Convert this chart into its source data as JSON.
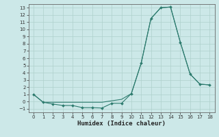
{
  "title": "",
  "xlabel": "Humidex (Indice chaleur)",
  "x": [
    0,
    1,
    2,
    3,
    4,
    5,
    6,
    7,
    8,
    9,
    10,
    11,
    12,
    13,
    14,
    15,
    16,
    17,
    18
  ],
  "y_main": [
    1.0,
    -0.1,
    -0.35,
    -0.55,
    -0.55,
    -0.85,
    -0.85,
    -0.9,
    -0.25,
    -0.25,
    1.1,
    5.3,
    11.5,
    13.0,
    13.1,
    8.2,
    3.8,
    2.4,
    2.3
  ],
  "y_upper": [
    1.0,
    -0.1,
    -0.1,
    -0.1,
    -0.1,
    -0.1,
    -0.1,
    -0.1,
    0.1,
    0.3,
    1.1,
    5.3,
    11.5,
    13.0,
    13.1,
    8.2,
    3.8,
    2.4,
    2.3
  ],
  "color": "#2d7b6e",
  "bg_color": "#cce8e8",
  "grid_color": "#aed0cc",
  "ylim": [
    -1.5,
    13.5
  ],
  "xlim": [
    -0.5,
    18.5
  ],
  "yticks": [
    -1,
    0,
    1,
    2,
    3,
    4,
    5,
    6,
    7,
    8,
    9,
    10,
    11,
    12,
    13
  ],
  "xticks": [
    0,
    1,
    2,
    3,
    4,
    5,
    6,
    7,
    8,
    9,
    10,
    11,
    12,
    13,
    14,
    15,
    16,
    17,
    18
  ],
  "tick_fontsize": 5.0,
  "xlabel_fontsize": 6.5
}
